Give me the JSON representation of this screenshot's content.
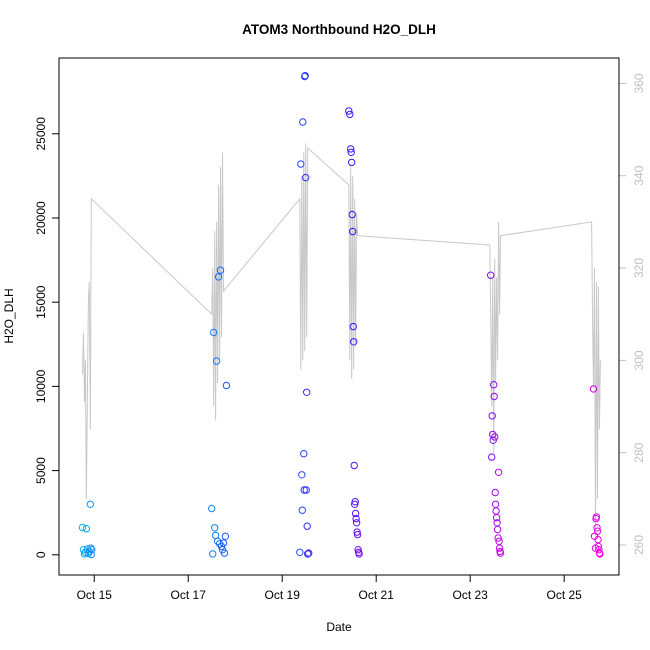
{
  "chart_data": {
    "type": "scatter",
    "title": "ATOM3 Northbound H2O_DLH",
    "xlabel": "Date",
    "ylabel": "H2O_DLH",
    "xlim": [
      "2016-10-14T06:00",
      "2016-10-26T04:00"
    ],
    "ylim": [
      -1200,
      29500
    ],
    "y2lim": [
      253.5,
      365.5
    ],
    "x_ticks": [
      {
        "label": "Oct 15",
        "value": "2016-10-15T00:00"
      },
      {
        "label": "Oct 17",
        "value": "2016-10-17T00:00"
      },
      {
        "label": "Oct 19",
        "value": "2016-10-19T00:00"
      },
      {
        "label": "Oct 21",
        "value": "2016-10-21T00:00"
      },
      {
        "label": "Oct 23",
        "value": "2016-10-23T00:00"
      },
      {
        "label": "Oct 25",
        "value": "2016-10-25T00:00"
      }
    ],
    "y_ticks": [
      0,
      5000,
      10000,
      15000,
      20000,
      25000
    ],
    "y2_ticks": [
      260,
      280,
      300,
      320,
      340,
      360
    ],
    "grid": false,
    "legend": "none",
    "colors": {
      "scatter_start": "#00b0f0",
      "scatter_mid": "#3a10ff",
      "scatter_end": "#ff00e0",
      "secondary_line": "#c8c8c8",
      "secondary_axis": "#bfbfbf",
      "frame": "#000000"
    },
    "series": [
      {
        "axis": "left",
        "marker": "open-circle",
        "points": [
          [
            "2016-10-14T18:00",
            1620
          ],
          [
            "2016-10-14T18:30",
            300
          ],
          [
            "2016-10-14T19:00",
            50
          ],
          [
            "2016-10-14T19:30",
            150
          ],
          [
            "2016-10-14T20:00",
            1550
          ],
          [
            "2016-10-14T20:30",
            350
          ],
          [
            "2016-10-14T21:00",
            80
          ],
          [
            "2016-10-14T21:30",
            200
          ],
          [
            "2016-10-14T22:00",
            3000
          ],
          [
            "2016-10-14T22:15",
            400
          ],
          [
            "2016-10-14T22:30",
            20
          ],
          [
            "2016-10-14T22:45",
            300
          ],
          [
            "2016-10-17T12:00",
            2750
          ],
          [
            "2016-10-17T12:30",
            50
          ],
          [
            "2016-10-17T13:00",
            13200
          ],
          [
            "2016-10-17T13:30",
            1600
          ],
          [
            "2016-10-17T14:00",
            1150
          ],
          [
            "2016-10-17T14:30",
            11500
          ],
          [
            "2016-10-17T15:00",
            800
          ],
          [
            "2016-10-17T15:30",
            16500
          ],
          [
            "2016-10-17T16:00",
            650
          ],
          [
            "2016-10-17T16:30",
            16900
          ],
          [
            "2016-10-17T17:00",
            500
          ],
          [
            "2016-10-17T17:30",
            300
          ],
          [
            "2016-10-17T18:00",
            700
          ],
          [
            "2016-10-17T18:30",
            100
          ],
          [
            "2016-10-17T19:00",
            1100
          ],
          [
            "2016-10-17T19:30",
            10050
          ],
          [
            "2016-10-19T09:00",
            150
          ],
          [
            "2016-10-19T09:30",
            23200
          ],
          [
            "2016-10-19T10:00",
            4750
          ],
          [
            "2016-10-19T10:15",
            2650
          ],
          [
            "2016-10-19T10:30",
            25700
          ],
          [
            "2016-10-19T11:00",
            6000
          ],
          [
            "2016-10-19T11:15",
            3850
          ],
          [
            "2016-10-19T11:30",
            28400
          ],
          [
            "2016-10-19T11:45",
            28450
          ],
          [
            "2016-10-19T12:00",
            22400
          ],
          [
            "2016-10-19T12:15",
            3850
          ],
          [
            "2016-10-19T12:30",
            9650
          ],
          [
            "2016-10-19T12:45",
            1700
          ],
          [
            "2016-10-19T13:00",
            50
          ],
          [
            "2016-10-19T13:30",
            100
          ],
          [
            "2016-10-20T10:00",
            26350
          ],
          [
            "2016-10-20T10:30",
            26150
          ],
          [
            "2016-10-20T11:00",
            24100
          ],
          [
            "2016-10-20T11:15",
            23900
          ],
          [
            "2016-10-20T11:30",
            23300
          ],
          [
            "2016-10-20T11:45",
            20200
          ],
          [
            "2016-10-20T12:00",
            19200
          ],
          [
            "2016-10-20T12:15",
            13550
          ],
          [
            "2016-10-20T12:30",
            12650
          ],
          [
            "2016-10-20T12:45",
            5300
          ],
          [
            "2016-10-20T13:00",
            3000
          ],
          [
            "2016-10-20T13:15",
            3150
          ],
          [
            "2016-10-20T13:30",
            2450
          ],
          [
            "2016-10-20T13:45",
            2150
          ],
          [
            "2016-10-20T14:00",
            1900
          ],
          [
            "2016-10-20T14:15",
            1350
          ],
          [
            "2016-10-20T14:30",
            1200
          ],
          [
            "2016-10-20T14:45",
            300
          ],
          [
            "2016-10-20T15:00",
            150
          ],
          [
            "2016-10-20T15:15",
            50
          ],
          [
            "2016-10-23T10:30",
            16600
          ],
          [
            "2016-10-23T11:00",
            5800
          ],
          [
            "2016-10-23T11:15",
            8250
          ],
          [
            "2016-10-23T11:30",
            7150
          ],
          [
            "2016-10-23T11:45",
            6800
          ],
          [
            "2016-10-23T12:00",
            10100
          ],
          [
            "2016-10-23T12:15",
            9400
          ],
          [
            "2016-10-23T12:30",
            7000
          ],
          [
            "2016-10-23T12:45",
            3700
          ],
          [
            "2016-10-23T13:00",
            3000
          ],
          [
            "2016-10-23T13:15",
            2600
          ],
          [
            "2016-10-23T13:30",
            2200
          ],
          [
            "2016-10-23T13:45",
            1900
          ],
          [
            "2016-10-23T14:00",
            1500
          ],
          [
            "2016-10-23T14:15",
            1000
          ],
          [
            "2016-10-23T14:30",
            4900
          ],
          [
            "2016-10-23T14:45",
            800
          ],
          [
            "2016-10-23T15:00",
            400
          ],
          [
            "2016-10-23T15:15",
            200
          ],
          [
            "2016-10-23T15:30",
            100
          ],
          [
            "2016-10-25T15:00",
            9850
          ],
          [
            "2016-10-25T15:30",
            1100
          ],
          [
            "2016-10-25T16:00",
            400
          ],
          [
            "2016-10-25T16:15",
            2150
          ],
          [
            "2016-10-25T16:30",
            2250
          ],
          [
            "2016-10-25T16:45",
            1600
          ],
          [
            "2016-10-25T17:00",
            1400
          ],
          [
            "2016-10-25T17:15",
            900
          ],
          [
            "2016-10-25T17:30",
            500
          ],
          [
            "2016-10-25T17:45",
            300
          ],
          [
            "2016-10-25T18:00",
            100
          ],
          [
            "2016-10-25T18:15",
            50
          ]
        ]
      },
      {
        "axis": "right",
        "type": "line",
        "points": [
          [
            "2016-10-14T18:00",
            297
          ],
          [
            "2016-10-14T18:30",
            306
          ],
          [
            "2016-10-14T19:00",
            291
          ],
          [
            "2016-10-14T19:30",
            300
          ],
          [
            "2016-10-14T20:00",
            270
          ],
          [
            "2016-10-14T20:30",
            293
          ],
          [
            "2016-10-14T21:00",
            313
          ],
          [
            "2016-10-14T21:30",
            317
          ],
          [
            "2016-10-14T22:00",
            285
          ],
          [
            "2016-10-14T22:30",
            335
          ],
          [
            "2016-10-17T12:00",
            310
          ],
          [
            "2016-10-17T12:30",
            320
          ],
          [
            "2016-10-17T13:00",
            290
          ],
          [
            "2016-10-17T13:30",
            328
          ],
          [
            "2016-10-17T14:00",
            287
          ],
          [
            "2016-10-17T14:30",
            330
          ],
          [
            "2016-10-17T15:00",
            295
          ],
          [
            "2016-10-17T15:30",
            338
          ],
          [
            "2016-10-17T16:00",
            300
          ],
          [
            "2016-10-17T16:30",
            342
          ],
          [
            "2016-10-17T17:00",
            305
          ],
          [
            "2016-10-17T17:30",
            345
          ],
          [
            "2016-10-17T18:00",
            315
          ],
          [
            "2016-10-19T09:00",
            335
          ],
          [
            "2016-10-19T09:30",
            298
          ],
          [
            "2016-10-19T10:00",
            340
          ],
          [
            "2016-10-19T10:30",
            300
          ],
          [
            "2016-10-19T11:00",
            345
          ],
          [
            "2016-10-19T11:30",
            302
          ],
          [
            "2016-10-19T12:00",
            347
          ],
          [
            "2016-10-19T12:30",
            305
          ],
          [
            "2016-10-19T13:00",
            346
          ],
          [
            "2016-10-20T10:00",
            338
          ],
          [
            "2016-10-20T10:30",
            300
          ],
          [
            "2016-10-20T11:00",
            342
          ],
          [
            "2016-10-20T11:30",
            296
          ],
          [
            "2016-10-20T12:00",
            340
          ],
          [
            "2016-10-20T12:30",
            298
          ],
          [
            "2016-10-20T13:00",
            335
          ],
          [
            "2016-10-20T13:30",
            303
          ],
          [
            "2016-10-20T14:00",
            332
          ],
          [
            "2016-10-20T14:30",
            327
          ],
          [
            "2016-10-23T10:00",
            325
          ],
          [
            "2016-10-23T10:30",
            310
          ],
          [
            "2016-10-23T11:00",
            290
          ],
          [
            "2016-10-23T11:30",
            318
          ],
          [
            "2016-10-23T12:00",
            280
          ],
          [
            "2016-10-23T12:30",
            322
          ],
          [
            "2016-10-23T13:00",
            295
          ],
          [
            "2016-10-23T13:30",
            318
          ],
          [
            "2016-10-23T14:00",
            300
          ],
          [
            "2016-10-23T14:30",
            330
          ],
          [
            "2016-10-23T15:00",
            310
          ],
          [
            "2016-10-23T15:30",
            327
          ],
          [
            "2016-10-25T14:00",
            330
          ],
          [
            "2016-10-25T14:30",
            308
          ],
          [
            "2016-10-25T15:00",
            294
          ],
          [
            "2016-10-25T15:30",
            320
          ],
          [
            "2016-10-25T16:00",
            262
          ],
          [
            "2016-10-25T16:30",
            317
          ],
          [
            "2016-10-25T17:00",
            270
          ],
          [
            "2016-10-25T17:30",
            316
          ],
          [
            "2016-10-25T18:00",
            285
          ],
          [
            "2016-10-25T18:30",
            300
          ]
        ]
      }
    ]
  }
}
